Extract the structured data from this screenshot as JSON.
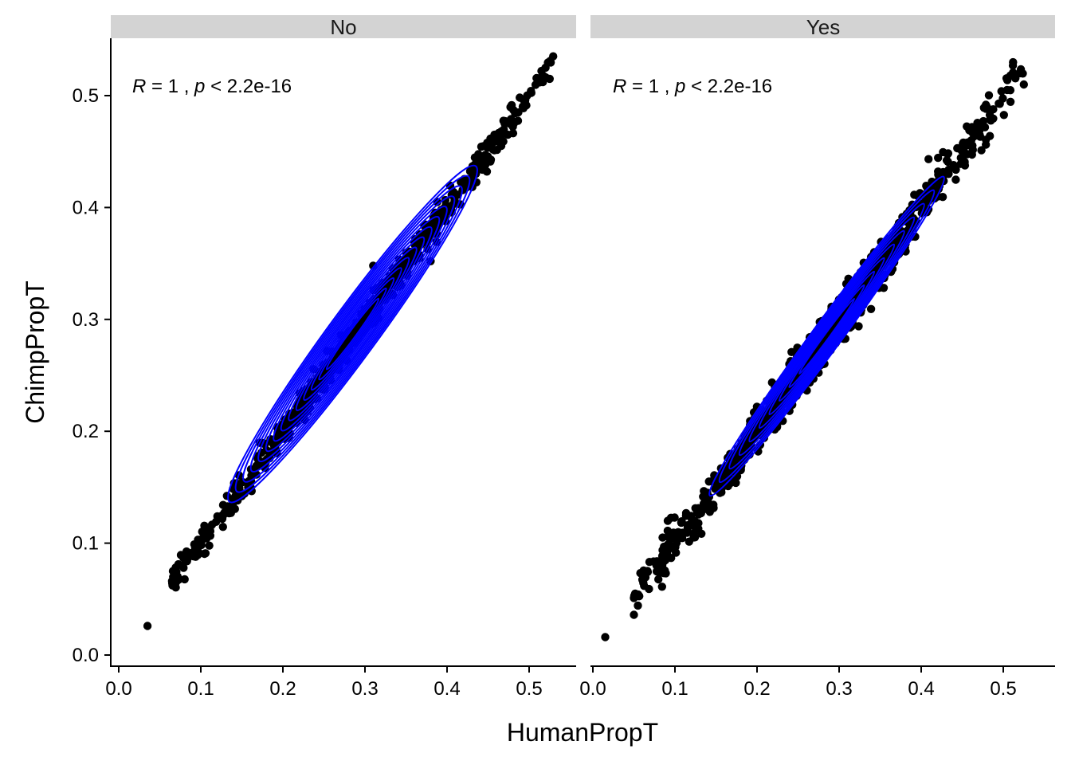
{
  "chart_data": {
    "type": "scatter",
    "xlabel": "HumanPropT",
    "ylabel": "ChimpPropT",
    "xlim": [
      -0.01,
      0.55
    ],
    "ylim": [
      -0.01,
      0.55
    ],
    "x_ticks": [
      "0.0",
      "0.1",
      "0.2",
      "0.3",
      "0.4",
      "0.5"
    ],
    "y_ticks": [
      "0.0",
      "0.1",
      "0.2",
      "0.3",
      "0.4",
      "0.5"
    ],
    "grid": false,
    "point_color": "#000000",
    "contour_color": "#0000ff",
    "facets": [
      {
        "label": "No",
        "annotation": {
          "r_symbol": "R",
          "r_text": " = 1 , ",
          "p_symbol": "p",
          "p_text": " < 2.2e-16"
        },
        "density_center": [
          0.285,
          0.287
        ],
        "density_extent_x": [
          0.135,
          0.435
        ],
        "outlier_points": [
          [
            0.035,
            0.026
          ],
          [
            0.07,
            0.066
          ],
          [
            0.065,
            0.066
          ],
          [
            0.066,
            0.075
          ],
          [
            0.38,
            0.352
          ],
          [
            0.31,
            0.348
          ],
          [
            0.52,
            0.525
          ],
          [
            0.525,
            0.515
          ],
          [
            0.515,
            0.522
          ]
        ],
        "point_band": {
          "x_min": 0.065,
          "x_max": 0.53,
          "spread": 0.006
        }
      },
      {
        "label": "Yes",
        "annotation": {
          "r_symbol": "R",
          "r_text": " = 1 , ",
          "p_symbol": "p",
          "p_text": " < 2.2e-16"
        },
        "density_center": [
          0.285,
          0.285
        ],
        "density_extent_x": [
          0.145,
          0.43
        ],
        "outlier_points": [
          [
            0.015,
            0.016
          ],
          [
            0.05,
            0.036
          ],
          [
            0.05,
            0.051
          ],
          [
            0.085,
            0.105
          ],
          [
            0.14,
            0.13
          ],
          [
            0.52,
            0.52
          ],
          [
            0.525,
            0.51
          ],
          [
            0.48,
            0.49
          ]
        ],
        "point_band": {
          "x_min": 0.05,
          "x_max": 0.525,
          "spread": 0.01
        }
      }
    ]
  }
}
